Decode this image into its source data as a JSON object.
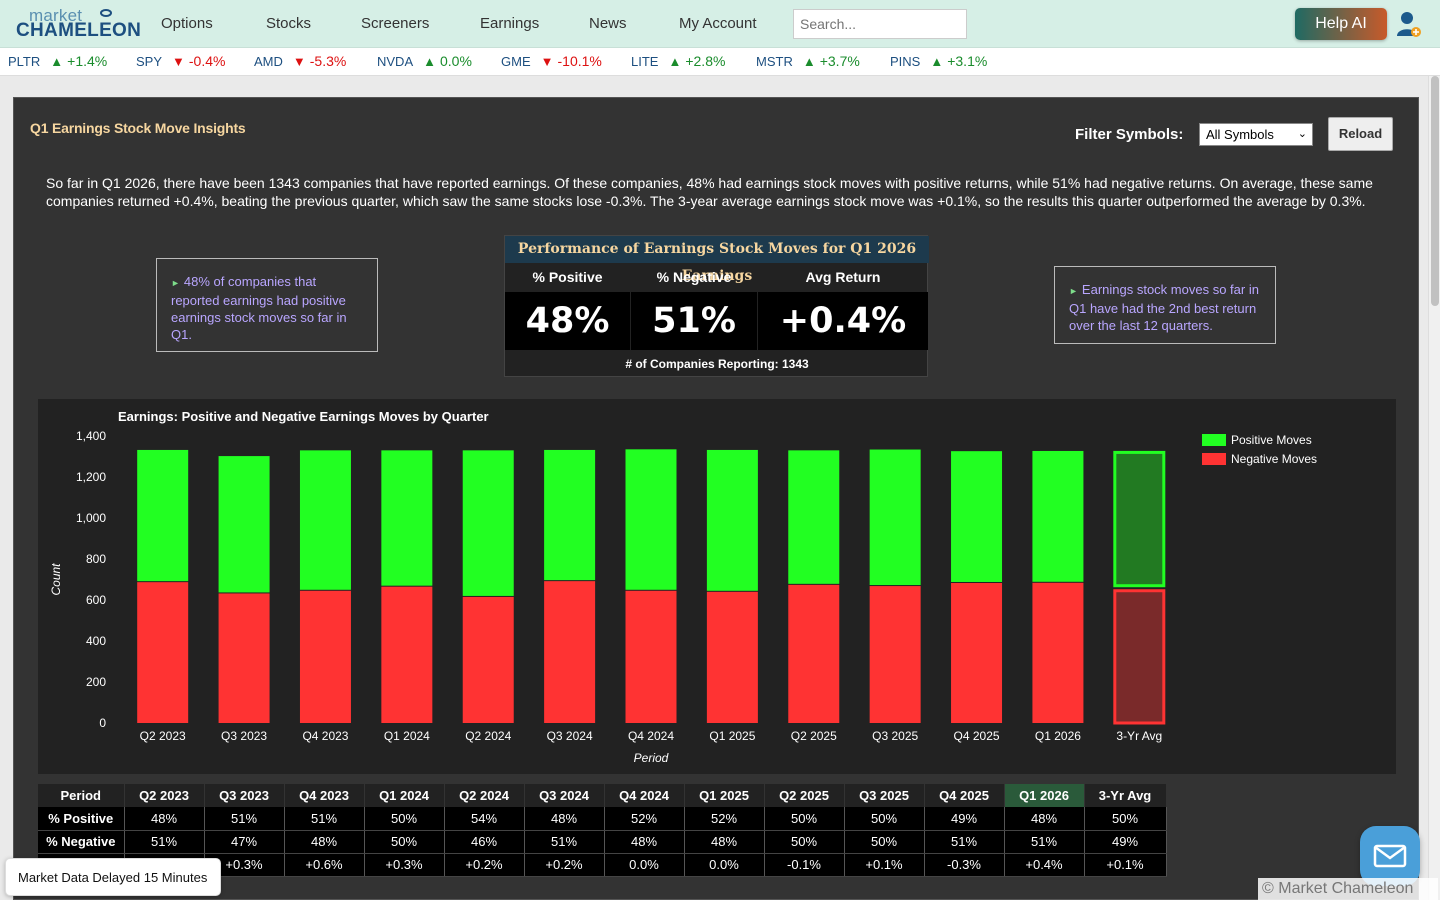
{
  "nav": {
    "logo_top": "market",
    "logo_bottom": "CHAMELEON",
    "items": [
      "Options",
      "Stocks",
      "Screeners",
      "Earnings",
      "News",
      "My Account"
    ],
    "search_placeholder": "Search...",
    "help_label": "Help AI"
  },
  "ticker": [
    {
      "symbol": "PLTR",
      "change": "+1.4%",
      "dir": "up"
    },
    {
      "symbol": "SPY",
      "change": "-0.4%",
      "dir": "down"
    },
    {
      "symbol": "AMD",
      "change": "-5.3%",
      "dir": "down"
    },
    {
      "symbol": "NVDA",
      "change": "0.0%",
      "dir": "up"
    },
    {
      "symbol": "GME",
      "change": "-10.1%",
      "dir": "down"
    },
    {
      "symbol": "LITE",
      "change": "+2.8%",
      "dir": "up"
    },
    {
      "symbol": "MSTR",
      "change": "+3.7%",
      "dir": "up"
    },
    {
      "symbol": "PINS",
      "change": "+3.1%",
      "dir": "up"
    }
  ],
  "panel": {
    "title": "Q1 Earnings Stock Move Insights",
    "filter_label": "Filter Symbols:",
    "filter_value": "All Symbols",
    "reload_label": "Reload",
    "summary": "So far in Q1 2026, there have been 1343 companies that have reported earnings. Of these companies, 48% had earnings stock moves with positive returns, while 51% had negative returns. On average, these same companies returned +0.4%, beating the previous quarter, which saw the same stocks lose -0.3%. The 3-year average earnings stock move was +0.1%, so the results this quarter outperformed the average by 0.3%.",
    "note_left": "48% of companies that reported earnings had positive earnings stock moves so far in Q1.",
    "note_right": "Earnings stock moves so far in Q1 have had the 2nd best return over the last 12 quarters."
  },
  "performance": {
    "title": "Performance of Earnings Stock Moves for Q1 2026 Earnings",
    "headers": [
      "% Positive",
      "% Negative",
      "Avg Return"
    ],
    "values": [
      "48%",
      "51%",
      "+0.4%"
    ],
    "count_label": "# of Companies Reporting: 1343"
  },
  "chart_data": {
    "type": "bar",
    "stacked": true,
    "title": "Earnings: Positive and Negative Earnings Moves by Quarter",
    "xlabel": "Period",
    "ylabel": "Count",
    "ylim": [
      0,
      1400
    ],
    "yticks": [
      "0",
      "200",
      "400",
      "600",
      "800",
      "1,000",
      "1,200",
      "1,400"
    ],
    "ytick_values": [
      0,
      200,
      400,
      600,
      800,
      1000,
      1200,
      1400
    ],
    "legend_position": "top-right",
    "categories": [
      "Q2 2023",
      "Q3 2023",
      "Q4 2023",
      "Q1 2024",
      "Q2 2024",
      "Q3 2024",
      "Q4 2024",
      "Q1 2025",
      "Q2 2025",
      "Q3 2025",
      "Q4 2025",
      "Q1 2026",
      "3-Yr Avg"
    ],
    "series": [
      {
        "name": "Negative Moves",
        "color": "#ff3333",
        "values": [
          687,
          632,
          645,
          665,
          615,
          692,
          645,
          640,
          674,
          668,
          683,
          684,
          655
        ]
      },
      {
        "name": "Positive Moves",
        "color": "#22ff22",
        "values": [
          645,
          670,
          685,
          665,
          715,
          640,
          690,
          692,
          656,
          666,
          643,
          643,
          665
        ]
      }
    ]
  },
  "table": {
    "header": [
      "Period",
      "Q2 2023",
      "Q3 2023",
      "Q4 2023",
      "Q1 2024",
      "Q2 2024",
      "Q3 2024",
      "Q4 2024",
      "Q1 2025",
      "Q2 2025",
      "Q3 2025",
      "Q4 2025",
      "Q1 2026",
      "3-Yr Avg"
    ],
    "rows": [
      [
        "% Positive",
        "48%",
        "51%",
        "51%",
        "50%",
        "54%",
        "48%",
        "52%",
        "52%",
        "50%",
        "50%",
        "49%",
        "48%",
        "50%"
      ],
      [
        "% Negative",
        "51%",
        "47%",
        "48%",
        "50%",
        "46%",
        "51%",
        "48%",
        "48%",
        "50%",
        "50%",
        "51%",
        "51%",
        "49%"
      ],
      [
        "",
        "",
        "+0.3%",
        "+0.6%",
        "+0.3%",
        "+0.2%",
        "+0.2%",
        "0.0%",
        "0.0%",
        "-0.1%",
        "+0.1%",
        "-0.3%",
        "+0.4%",
        "+0.1%"
      ]
    ]
  },
  "footer": {
    "delayed": "Market Data Delayed 15 Minutes",
    "copyright": "© Market Chameleon"
  }
}
